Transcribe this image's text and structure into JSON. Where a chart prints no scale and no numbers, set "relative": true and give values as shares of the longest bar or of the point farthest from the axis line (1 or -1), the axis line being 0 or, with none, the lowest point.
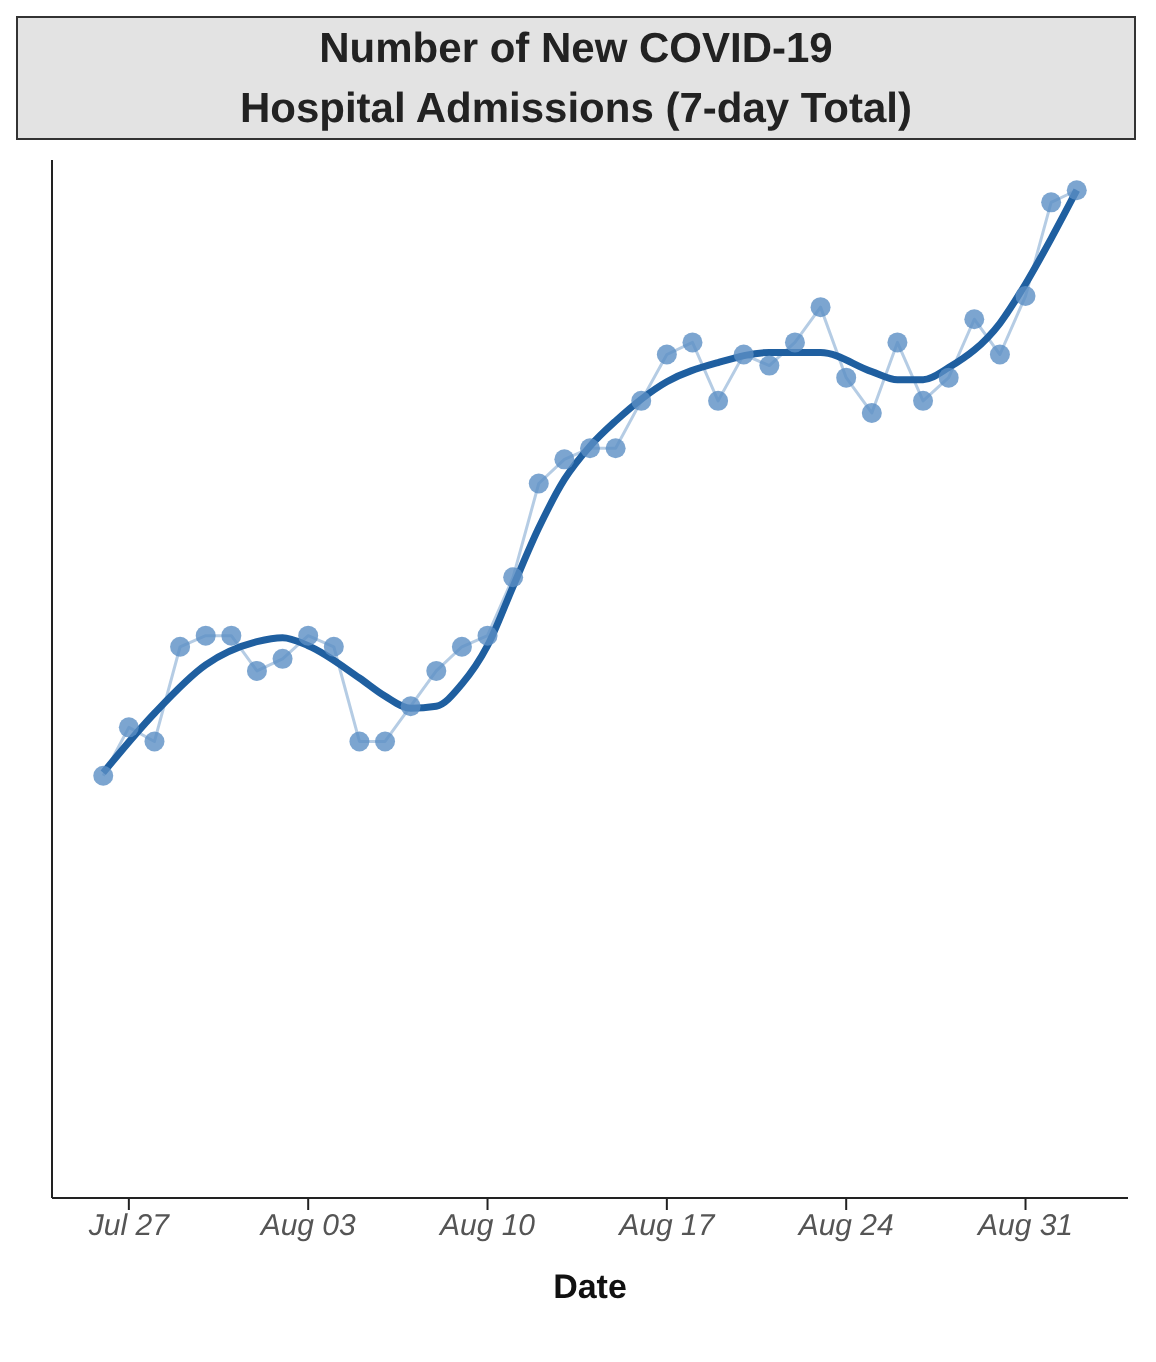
{
  "chart_data": {
    "type": "line",
    "title": "Number of New COVID-19 Hospital Admissions (7-day Total)",
    "xlabel": "Date",
    "relative": true,
    "x": [
      "--07-26",
      "--07-27",
      "--07-28",
      "--07-29",
      "--07-30",
      "--07-31",
      "--08-01",
      "--08-02",
      "--08-03",
      "--08-04",
      "--08-05",
      "--08-06",
      "--08-07",
      "--08-08",
      "--08-09",
      "--08-10",
      "--08-11",
      "--08-12",
      "--08-13",
      "--08-14",
      "--08-15",
      "--08-16",
      "--08-17",
      "--08-18",
      "--08-19",
      "--08-20",
      "--08-21",
      "--08-22",
      "--08-23",
      "--08-24",
      "--08-25",
      "--08-26",
      "--08-27",
      "--08-28",
      "--08-29",
      "--08-30",
      "--08-31",
      "--09-01",
      "--09-02"
    ],
    "xlim": [
      "--07-24",
      "--09-04"
    ],
    "xticks": [
      {
        "value": "--07-27",
        "label": "Jul 27"
      },
      {
        "value": "--08-03",
        "label": "Aug 03"
      },
      {
        "value": "--08-10",
        "label": "Aug 10"
      },
      {
        "value": "--08-17",
        "label": "Aug 17"
      },
      {
        "value": "--08-24",
        "label": "Aug 24"
      },
      {
        "value": "--08-31",
        "label": "Aug 31"
      }
    ],
    "series": [
      {
        "color": "#5b8ec4",
        "marker": "circle",
        "values": [
          0.419,
          0.467,
          0.453,
          0.547,
          0.558,
          0.558,
          0.523,
          0.535,
          0.558,
          0.547,
          0.453,
          0.453,
          0.488,
          0.523,
          0.547,
          0.558,
          0.616,
          0.709,
          0.733,
          0.744,
          0.744,
          0.791,
          0.837,
          0.849,
          0.791,
          0.837,
          0.826,
          0.849,
          0.884,
          0.814,
          0.779,
          0.849,
          0.791,
          0.814,
          0.872,
          0.837,
          0.895,
          0.988,
          1
        ]
      },
      {
        "color": "#1f5fa0",
        "marker": "none",
        "x": [
          "--07-26",
          "--07-28",
          "--07-30",
          "--08-01",
          "--08-02",
          "--08-03",
          "--08-05",
          "--08-06",
          "--08-07",
          "--08-08",
          "--08-09",
          "--08-10",
          "--08-11",
          "--08-12",
          "--08-13",
          "--08-14",
          "--08-15",
          "--08-17",
          "--08-19",
          "--08-21",
          "--08-23",
          "--08-25",
          "--08-26",
          "--08-27",
          "--08-28",
          "--08-30",
          "--08-31",
          "--09-01",
          "--09-02"
        ],
        "values": [
          0.422,
          0.481,
          0.529,
          0.552,
          0.556,
          0.548,
          0.516,
          0.498,
          0.486,
          0.488,
          0.51,
          0.548,
          0.607,
          0.665,
          0.713,
          0.746,
          0.771,
          0.81,
          0.829,
          0.839,
          0.839,
          0.82,
          0.812,
          0.812,
          0.824,
          0.868,
          0.907,
          0.952,
          1
        ]
      }
    ],
    "line_style": "solid"
  }
}
